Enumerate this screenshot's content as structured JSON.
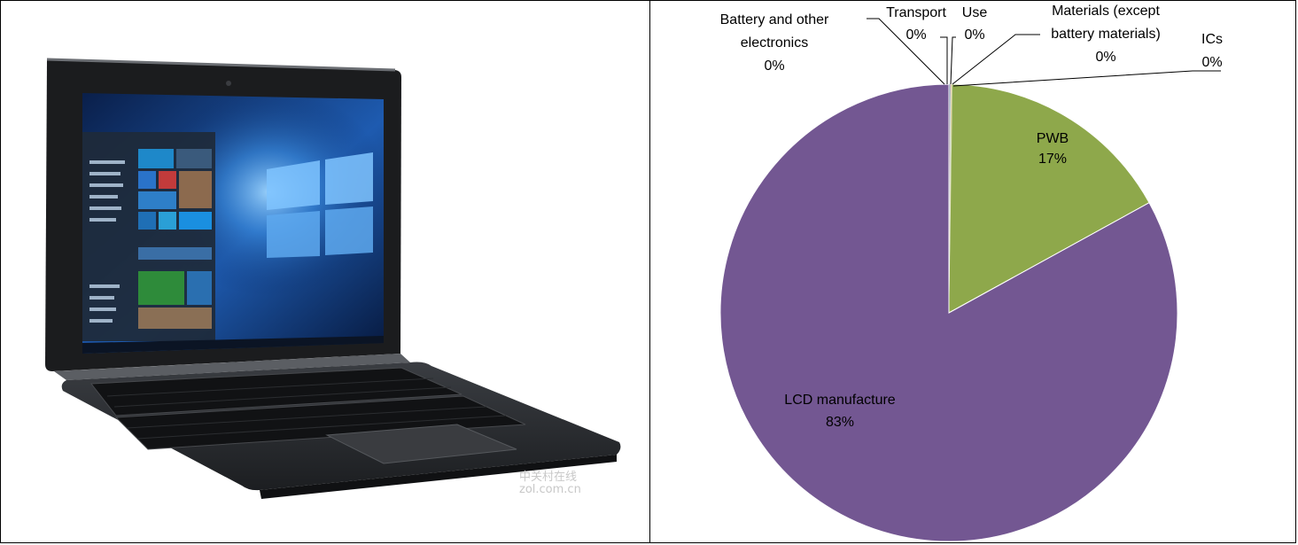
{
  "photo": {
    "subject": "2-in-1 tablet laptop",
    "watermark_lines": [
      "中关村在线",
      "zol.com.cn"
    ]
  },
  "chart_data": {
    "type": "pie",
    "title": "",
    "slices": [
      {
        "label": "PWB",
        "pct_label": "17%",
        "value": 17,
        "color": "#8ea84b"
      },
      {
        "label": "LCD manufacture",
        "pct_label": "83%",
        "value": 83,
        "color": "#735792"
      },
      {
        "label": "Battery and other electronics",
        "label_lines": [
          "Battery and other",
          "electronics"
        ],
        "pct_label": "0%",
        "value": 0,
        "color": "#4f81bd"
      },
      {
        "label": "Transport",
        "pct_label": "0%",
        "value": 0,
        "color": "#c0504d"
      },
      {
        "label": "Use",
        "pct_label": "0%",
        "value": 0,
        "color": "#4bacc6"
      },
      {
        "label": "Materials (except battery materials)",
        "label_lines": [
          "Materials (except",
          "battery materials)"
        ],
        "pct_label": "0%",
        "value": 0,
        "color": "#f79646"
      },
      {
        "label": "ICs",
        "pct_label": "0%",
        "value": 0,
        "color": "#9bbb59"
      }
    ],
    "legend": "none"
  }
}
